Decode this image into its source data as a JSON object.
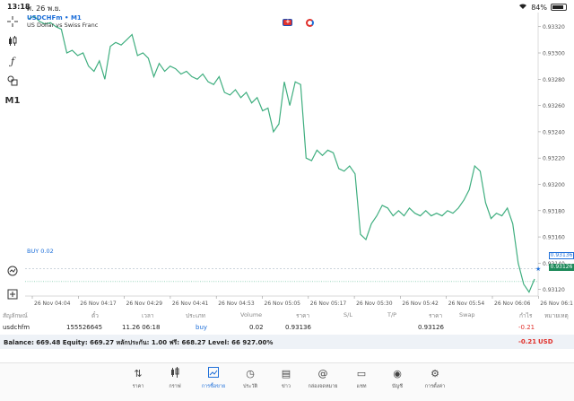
{
  "status_bar": {
    "time": "13:18",
    "date": "ศ. 26 พ.ย.",
    "wifi_icon": "wifi-icon",
    "battery": "84%"
  },
  "chart": {
    "symbol": "USDCHFm • M1",
    "description": "US Dollar vs Swiss Franc",
    "buy_label": "BUY 0.02",
    "buy_price_tag": "0.93136",
    "current_price_tag": "0.93126",
    "y_ticks": [
      "0.93320",
      "0.93300",
      "0.93280",
      "0.93260",
      "0.93240",
      "0.93220",
      "0.93200",
      "0.93180",
      "0.93160",
      "0.93140",
      "0.93120"
    ],
    "x_ticks": [
      "26 Nov 04:04",
      "26 Nov 04:17",
      "26 Nov 04:29",
      "26 Nov 04:41",
      "26 Nov 04:53",
      "26 Nov 05:05",
      "26 Nov 05:17",
      "26 Nov 05:30",
      "26 Nov 05:42",
      "26 Nov 05:54",
      "26 Nov 06:06",
      "26 Nov 06:1"
    ],
    "line_color": "#3fae7f",
    "buy_line_color": "#9aa8b8",
    "current_line_color": "#3fae7f"
  },
  "chart_data": {
    "type": "line",
    "ylim": [
      0.93115,
      0.93328
    ],
    "buy_price": 0.93136,
    "current_price": 0.93126,
    "series": [
      {
        "values": [
          0.93326,
          0.93328,
          0.93324,
          0.93322,
          0.93323,
          0.9332,
          0.93318,
          0.933,
          0.93302,
          0.93298,
          0.933,
          0.9329,
          0.93286,
          0.93294,
          0.9328,
          0.93305,
          0.93308,
          0.93306,
          0.9331,
          0.93314,
          0.93298,
          0.933,
          0.93296,
          0.93282,
          0.93292,
          0.93286,
          0.9329,
          0.93288,
          0.93284,
          0.93286,
          0.93282,
          0.9328,
          0.93284,
          0.93278,
          0.93276,
          0.93282,
          0.9327,
          0.93268,
          0.93272,
          0.93266,
          0.9327,
          0.93262,
          0.93266,
          0.93256,
          0.93258,
          0.9324,
          0.93246,
          0.93278,
          0.9326,
          0.93278,
          0.93276,
          0.9322,
          0.93218,
          0.93226,
          0.93222,
          0.93226,
          0.93224,
          0.93212,
          0.9321,
          0.93214,
          0.93208,
          0.93162,
          0.93158,
          0.9317,
          0.93176,
          0.93184,
          0.93182,
          0.93176,
          0.9318,
          0.93176,
          0.93182,
          0.93178,
          0.93176,
          0.9318,
          0.93176,
          0.93178,
          0.93176,
          0.9318,
          0.93178,
          0.93182,
          0.93188,
          0.93196,
          0.93214,
          0.9321,
          0.93186,
          0.93174,
          0.93178,
          0.93176,
          0.93182,
          0.9317,
          0.9314,
          0.93124,
          0.93118,
          0.93128
        ]
      }
    ]
  },
  "positions": {
    "headers": [
      "สัญลักษณ์",
      "ตั๋ว",
      "เวลา",
      "ประเภท",
      "Volume",
      "ราคา",
      "S/L",
      "T/P",
      "ราคา",
      "Swap",
      "กำไร",
      "หมายเหตุ"
    ],
    "row": {
      "symbol": "usdchfm",
      "ticket": "155526645",
      "time": "11.26 06:18",
      "type": "buy",
      "volume": "0.02",
      "open_price": "0.93136",
      "sl": "",
      "tp": "",
      "price": "0.93126",
      "swap": "",
      "profit": "-0.21",
      "comment": ""
    },
    "balance_text": "Balance: 669.48 Equity: 669.27 หลักประกัน: 1.00 ฟรี: 668.27 Level: 66 927.00%",
    "balance_profit": "-0.21",
    "currency": "USD"
  },
  "nav": [
    {
      "label": "ราคา",
      "icon": "sort-arrows-icon"
    },
    {
      "label": "กราฟ",
      "icon": "candlestick-icon"
    },
    {
      "label": "การซื้อขาย",
      "icon": "trade-chart-icon",
      "active": true
    },
    {
      "label": "ประวัติ",
      "icon": "history-clock-icon"
    },
    {
      "label": "ข่าว",
      "icon": "news-icon"
    },
    {
      "label": "กล่องจดหมาย",
      "icon": "at-sign-icon"
    },
    {
      "label": "แชท",
      "icon": "chat-bubble-icon"
    },
    {
      "label": "บัญชี",
      "icon": "account-icon"
    },
    {
      "label": "การตั้งค่า",
      "icon": "gear-icon"
    }
  ]
}
